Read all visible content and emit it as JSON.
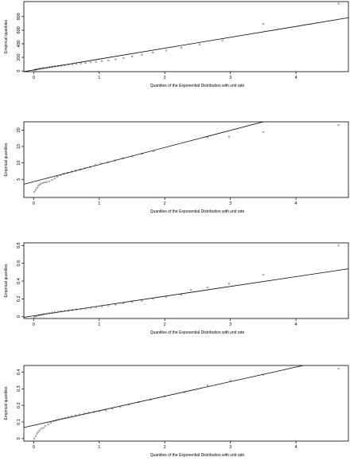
{
  "chart_data": [
    {
      "type": "scatter",
      "xlabel": "Quantiles of the Exponential Distribution with unit rate",
      "ylabel": "Empirical quantiles",
      "xlim": [
        -0.15,
        4.8
      ],
      "ylim": [
        -10,
        1020
      ],
      "xticks": [
        0,
        1,
        2,
        3,
        4
      ],
      "yticks": [
        0,
        200,
        400,
        600,
        800
      ],
      "fit_line": {
        "intercept": 15,
        "slope": 160
      },
      "points": [
        [
          0.01,
          15
        ],
        [
          0.03,
          20
        ],
        [
          0.05,
          25
        ],
        [
          0.08,
          30
        ],
        [
          0.1,
          35
        ],
        [
          0.13,
          40
        ],
        [
          0.16,
          45
        ],
        [
          0.2,
          50
        ],
        [
          0.24,
          57
        ],
        [
          0.28,
          62
        ],
        [
          0.32,
          68
        ],
        [
          0.37,
          73
        ],
        [
          0.42,
          80
        ],
        [
          0.47,
          86
        ],
        [
          0.53,
          92
        ],
        [
          0.59,
          98
        ],
        [
          0.65,
          105
        ],
        [
          0.72,
          112
        ],
        [
          0.79,
          120
        ],
        [
          0.87,
          128
        ],
        [
          0.95,
          136
        ],
        [
          1.04,
          145
        ],
        [
          1.14,
          155
        ],
        [
          1.25,
          170
        ],
        [
          1.37,
          190
        ],
        [
          1.5,
          210
        ],
        [
          1.65,
          240
        ],
        [
          1.82,
          270
        ],
        [
          2.02,
          300
        ],
        [
          2.25,
          340
        ],
        [
          2.53,
          390
        ],
        [
          2.88,
          450
        ],
        [
          3.5,
          690
        ],
        [
          4.65,
          990
        ]
      ]
    },
    {
      "type": "scatter",
      "xlabel": "Quantiles of the Exponential Distribution with unit rate",
      "ylabel": "Empirical quantiles",
      "xlim": [
        -0.15,
        4.8
      ],
      "ylim": [
        -0.5,
        22.5
      ],
      "xticks": [
        0,
        1,
        2,
        3,
        4
      ],
      "yticks": [
        5,
        10,
        15,
        20
      ],
      "fit_line": {
        "intercept": 4.3,
        "slope": 5.2
      },
      "points": [
        [
          0.01,
          1.2
        ],
        [
          0.03,
          1.8
        ],
        [
          0.05,
          2.4
        ],
        [
          0.07,
          3.0
        ],
        [
          0.09,
          3.4
        ],
        [
          0.11,
          3.7
        ],
        [
          0.14,
          3.9
        ],
        [
          0.17,
          4.1
        ],
        [
          0.2,
          4.2
        ],
        [
          0.24,
          4.4
        ],
        [
          0.28,
          4.8
        ],
        [
          0.32,
          5.3
        ],
        [
          0.36,
          5.8
        ],
        [
          0.41,
          6.3
        ],
        [
          0.46,
          6.7
        ],
        [
          0.52,
          7.0
        ],
        [
          0.58,
          7.3
        ],
        [
          0.64,
          7.6
        ],
        [
          0.71,
          8.0
        ],
        [
          0.78,
          8.4
        ],
        [
          0.86,
          8.8
        ],
        [
          0.94,
          9.3
        ],
        [
          1.03,
          9.8
        ],
        [
          1.13,
          10.2
        ],
        [
          1.24,
          10.8
        ],
        [
          1.36,
          11.4
        ],
        [
          1.5,
          12.0
        ],
        [
          1.65,
          12.8
        ],
        [
          1.83,
          13.6
        ],
        [
          2.65,
          17.8
        ],
        [
          2.98,
          18.0
        ],
        [
          3.5,
          19.4
        ],
        [
          4.65,
          21.5
        ]
      ]
    },
    {
      "type": "scatter",
      "xlabel": "Quantiles of the Exponential Distribution with unit rate",
      "ylabel": "Empirical quantiles",
      "xlim": [
        -0.15,
        4.8
      ],
      "ylim": [
        -0.02,
        0.83
      ],
      "xticks": [
        0,
        1,
        2,
        3,
        4
      ],
      "yticks": [
        0.0,
        0.2,
        0.4,
        0.6,
        0.8
      ],
      "fit_line": {
        "intercept": 0.01,
        "slope": 0.11
      },
      "points": [
        [
          0.01,
          0.0
        ],
        [
          0.03,
          0.005
        ],
        [
          0.05,
          0.01
        ],
        [
          0.08,
          0.015
        ],
        [
          0.1,
          0.02
        ],
        [
          0.13,
          0.025
        ],
        [
          0.16,
          0.03
        ],
        [
          0.2,
          0.035
        ],
        [
          0.24,
          0.04
        ],
        [
          0.28,
          0.045
        ],
        [
          0.32,
          0.05
        ],
        [
          0.37,
          0.055
        ],
        [
          0.42,
          0.06
        ],
        [
          0.47,
          0.065
        ],
        [
          0.53,
          0.07
        ],
        [
          0.59,
          0.075
        ],
        [
          0.65,
          0.08
        ],
        [
          0.72,
          0.085
        ],
        [
          0.79,
          0.09
        ],
        [
          0.87,
          0.1
        ],
        [
          0.95,
          0.105
        ],
        [
          1.04,
          0.115
        ],
        [
          1.14,
          0.125
        ],
        [
          1.25,
          0.135
        ],
        [
          1.37,
          0.15
        ],
        [
          1.5,
          0.165
        ],
        [
          1.65,
          0.18
        ],
        [
          1.82,
          0.2
        ],
        [
          2.02,
          0.22
        ],
        [
          2.25,
          0.245
        ],
        [
          2.4,
          0.3
        ],
        [
          2.65,
          0.33
        ],
        [
          2.98,
          0.37
        ],
        [
          3.5,
          0.47
        ],
        [
          4.65,
          0.8
        ]
      ]
    },
    {
      "type": "scatter",
      "xlabel": "Quantiles of the Exponential Distribution with unit rate",
      "ylabel": "Empirical quantiles",
      "xlim": [
        -0.15,
        4.8
      ],
      "ylim": [
        -0.015,
        0.44
      ],
      "xticks": [
        0,
        1,
        2,
        3,
        4
      ],
      "yticks": [
        0.0,
        0.1,
        0.2,
        0.3,
        0.4
      ],
      "fit_line": {
        "intercept": 0.08,
        "slope": 0.0875
      },
      "points": [
        [
          0.01,
          0.0
        ],
        [
          0.03,
          0.015
        ],
        [
          0.05,
          0.03
        ],
        [
          0.07,
          0.04
        ],
        [
          0.09,
          0.05
        ],
        [
          0.12,
          0.06
        ],
        [
          0.15,
          0.065
        ],
        [
          0.18,
          0.075
        ],
        [
          0.22,
          0.085
        ],
        [
          0.26,
          0.095
        ],
        [
          0.3,
          0.105
        ],
        [
          0.34,
          0.11
        ],
        [
          0.38,
          0.115
        ],
        [
          0.43,
          0.12
        ],
        [
          0.48,
          0.125
        ],
        [
          0.53,
          0.13
        ],
        [
          0.58,
          0.135
        ],
        [
          0.64,
          0.14
        ],
        [
          0.7,
          0.145
        ],
        [
          0.77,
          0.15
        ],
        [
          0.84,
          0.155
        ],
        [
          0.92,
          0.16
        ],
        [
          1.0,
          0.165
        ],
        [
          1.1,
          0.17
        ],
        [
          1.2,
          0.18
        ],
        [
          1.32,
          0.19
        ],
        [
          1.45,
          0.205
        ],
        [
          1.6,
          0.22
        ],
        [
          1.78,
          0.235
        ],
        [
          2.0,
          0.255
        ],
        [
          2.3,
          0.28
        ],
        [
          2.65,
          0.32
        ],
        [
          3.0,
          0.35
        ],
        [
          3.5,
          0.385
        ],
        [
          4.65,
          0.42
        ]
      ]
    }
  ]
}
